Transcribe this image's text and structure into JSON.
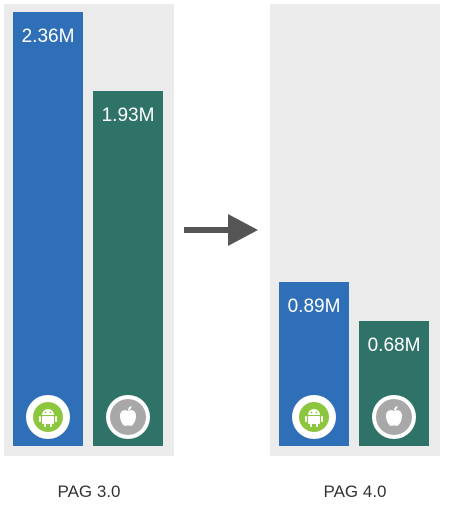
{
  "chart_data": {
    "type": "bar",
    "categories": [
      "PAG 3.0",
      "PAG 4.0"
    ],
    "series": [
      {
        "platform": "android-icon",
        "color": "#2e6fb8",
        "values": [
          2.36,
          0.89
        ],
        "labels": [
          "2.36M",
          "0.89M"
        ]
      },
      {
        "platform": "apple-icon",
        "color": "#2f7268",
        "values": [
          1.93,
          0.68
        ],
        "labels": [
          "1.93M",
          "0.68M"
        ]
      }
    ],
    "ylim": [
      0,
      2.36
    ],
    "grid": false,
    "legend": "none"
  }
}
